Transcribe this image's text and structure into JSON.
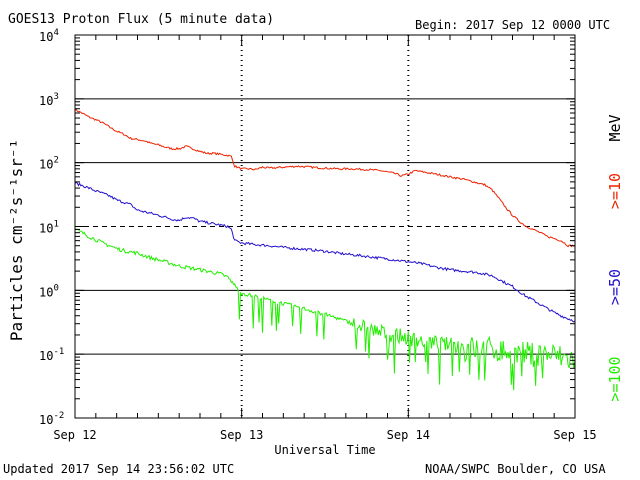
{
  "chart_data": {
    "type": "line",
    "title": "GOES13 Proton Flux (5 minute data)",
    "begin_label": "Begin: 2017 Sep 12 0000 UTC",
    "xlabel": "Universal Time",
    "ylabel": "Particles cm⁻²s⁻¹sr⁻¹",
    "y_scale": "log",
    "ylim": [
      0.01,
      10000
    ],
    "xlim": [
      0,
      72
    ],
    "x_unit": "hours since 2017 Sep 12 0000 UTC",
    "x_ticks": [
      {
        "x": 0,
        "label": "Sep 12"
      },
      {
        "x": 24,
        "label": "Sep 13"
      },
      {
        "x": 48,
        "label": "Sep 14"
      },
      {
        "x": 72,
        "label": "Sep 15"
      }
    ],
    "y_ticks": [
      {
        "exp": -2,
        "base": "10",
        "sup": "-2"
      },
      {
        "exp": -1,
        "base": "10",
        "sup": "-1"
      },
      {
        "exp": 0,
        "base": "10",
        "sup": "0"
      },
      {
        "exp": 1,
        "base": "10",
        "sup": "1"
      },
      {
        "exp": 2,
        "base": "10",
        "sup": "2"
      },
      {
        "exp": 3,
        "base": "10",
        "sup": "3"
      },
      {
        "exp": 4,
        "base": "10",
        "sup": "4"
      }
    ],
    "solid_gridlines": [
      0.1,
      1,
      100,
      1000
    ],
    "dashed_gridlines": [
      10
    ],
    "unit_label": "MeV",
    "series": [
      {
        "name": ">=10",
        "color": "#ee2200",
        "x": [
          0,
          1,
          2,
          3,
          4,
          5,
          6,
          7,
          8,
          9,
          10,
          11,
          12,
          13,
          14,
          15,
          16,
          17,
          18,
          19,
          20,
          21,
          22,
          22.5,
          23,
          24,
          25,
          26,
          27,
          28,
          30,
          32,
          34,
          36,
          38,
          40,
          42,
          44,
          46,
          47,
          48,
          49,
          50,
          52,
          54,
          56,
          58,
          59,
          60,
          61,
          62,
          63,
          64,
          65,
          66,
          67,
          68,
          69,
          70,
          71,
          72
        ],
        "values": [
          680,
          600,
          520,
          470,
          420,
          360,
          310,
          280,
          240,
          230,
          220,
          200,
          190,
          175,
          165,
          165,
          180,
          165,
          150,
          140,
          140,
          135,
          130,
          125,
          88,
          80,
          80,
          78,
          85,
          82,
          85,
          88,
          85,
          82,
          80,
          80,
          78,
          75,
          68,
          62,
          66,
          75,
          72,
          66,
          60,
          55,
          48,
          45,
          38,
          28,
          20,
          15,
          12,
          10,
          9,
          8,
          7,
          6.5,
          6,
          5,
          5
        ]
      },
      {
        "name": ">=50",
        "color": "#2211cc",
        "x": [
          0,
          1,
          2,
          3,
          4,
          5,
          6,
          7,
          8,
          9,
          10,
          11,
          12,
          13,
          14,
          15,
          16,
          17,
          18,
          19,
          20,
          21,
          22,
          22.5,
          23,
          24,
          26,
          28,
          30,
          32,
          34,
          36,
          38,
          40,
          42,
          44,
          46,
          48,
          50,
          52,
          54,
          56,
          58,
          60,
          61,
          62,
          63,
          64,
          65,
          66,
          67,
          68,
          69,
          70,
          71,
          72
        ],
        "values": [
          48,
          44,
          40,
          36,
          33,
          30,
          26,
          24,
          22,
          18,
          17,
          16,
          15,
          14,
          13,
          12.5,
          14,
          13.5,
          12,
          11.5,
          11,
          10.5,
          10,
          9,
          6,
          5.5,
          5.2,
          5,
          4.7,
          4.5,
          4.3,
          4.1,
          3.8,
          3.6,
          3.4,
          3.2,
          3,
          2.8,
          2.6,
          2.3,
          2.1,
          2,
          1.9,
          1.7,
          1.5,
          1.3,
          1.15,
          0.95,
          0.8,
          0.7,
          0.6,
          0.52,
          0.45,
          0.4,
          0.36,
          0.33
        ]
      },
      {
        "name": ">=100",
        "color": "#22ee00",
        "x": [
          0,
          1,
          2,
          3,
          4,
          5,
          6,
          7,
          8,
          9,
          10,
          11,
          12,
          13,
          14,
          15,
          16,
          17,
          18,
          19,
          20,
          21,
          22,
          23,
          24,
          26,
          28,
          30,
          32,
          34,
          36,
          38,
          40,
          42,
          44,
          46,
          48,
          50,
          52,
          54,
          56,
          58,
          60,
          62,
          64,
          66,
          68,
          70,
          72
        ],
        "values": [
          9,
          8,
          7,
          6.2,
          5.5,
          5,
          4.5,
          4.2,
          4,
          3.8,
          3.5,
          3.2,
          3,
          2.8,
          2.6,
          2.4,
          2.3,
          2.2,
          2.1,
          2,
          1.9,
          1.8,
          1.6,
          1.2,
          0.9,
          0.8,
          0.7,
          0.62,
          0.55,
          0.48,
          0.42,
          0.36,
          0.3,
          0.26,
          0.22,
          0.2,
          0.18,
          0.16,
          0.15,
          0.14,
          0.13,
          0.12,
          0.12,
          0.11,
          0.1,
          0.1,
          0.1,
          0.09,
          0.08
        ]
      }
    ]
  },
  "footer": {
    "updated": "Updated 2017 Sep 14 23:56:02 UTC",
    "source": "NOAA/SWPC Boulder, CO USA"
  }
}
